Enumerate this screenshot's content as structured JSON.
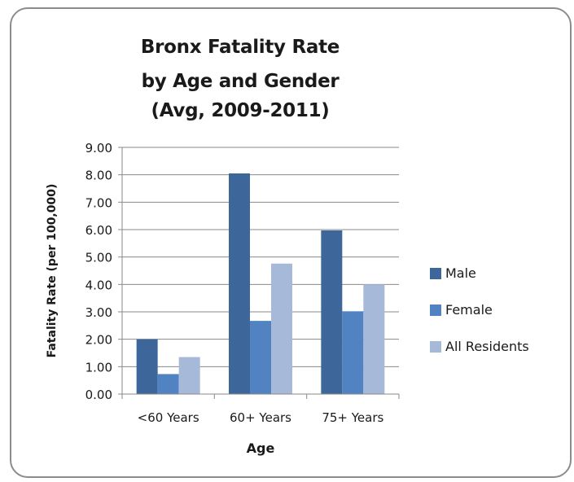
{
  "chart_data": {
    "type": "bar",
    "title_lines": [
      "Bronx Fatality Rate",
      "by Age and Gender",
      "(Avg, 2009-2011)"
    ],
    "xlabel": "Age",
    "ylabel": "Fatality Rate (per 100,000)",
    "categories": [
      "<60 Years",
      "60+ Years",
      "75+ Years"
    ],
    "series": [
      {
        "name": "Male",
        "values": [
          2.0,
          8.05,
          5.97
        ],
        "color": "#3d679a"
      },
      {
        "name": "Female",
        "values": [
          0.73,
          2.67,
          3.02
        ],
        "color": "#5183c2"
      },
      {
        "name": "All Residents",
        "values": [
          1.35,
          4.76,
          4.0
        ],
        "color": "#a7b9d9"
      }
    ],
    "ylim": [
      0,
      9
    ],
    "yticks": [
      "0.00",
      "1.00",
      "2.00",
      "3.00",
      "4.00",
      "5.00",
      "6.00",
      "7.00",
      "8.00",
      "9.00"
    ],
    "grid": true,
    "legend_position": "right"
  }
}
